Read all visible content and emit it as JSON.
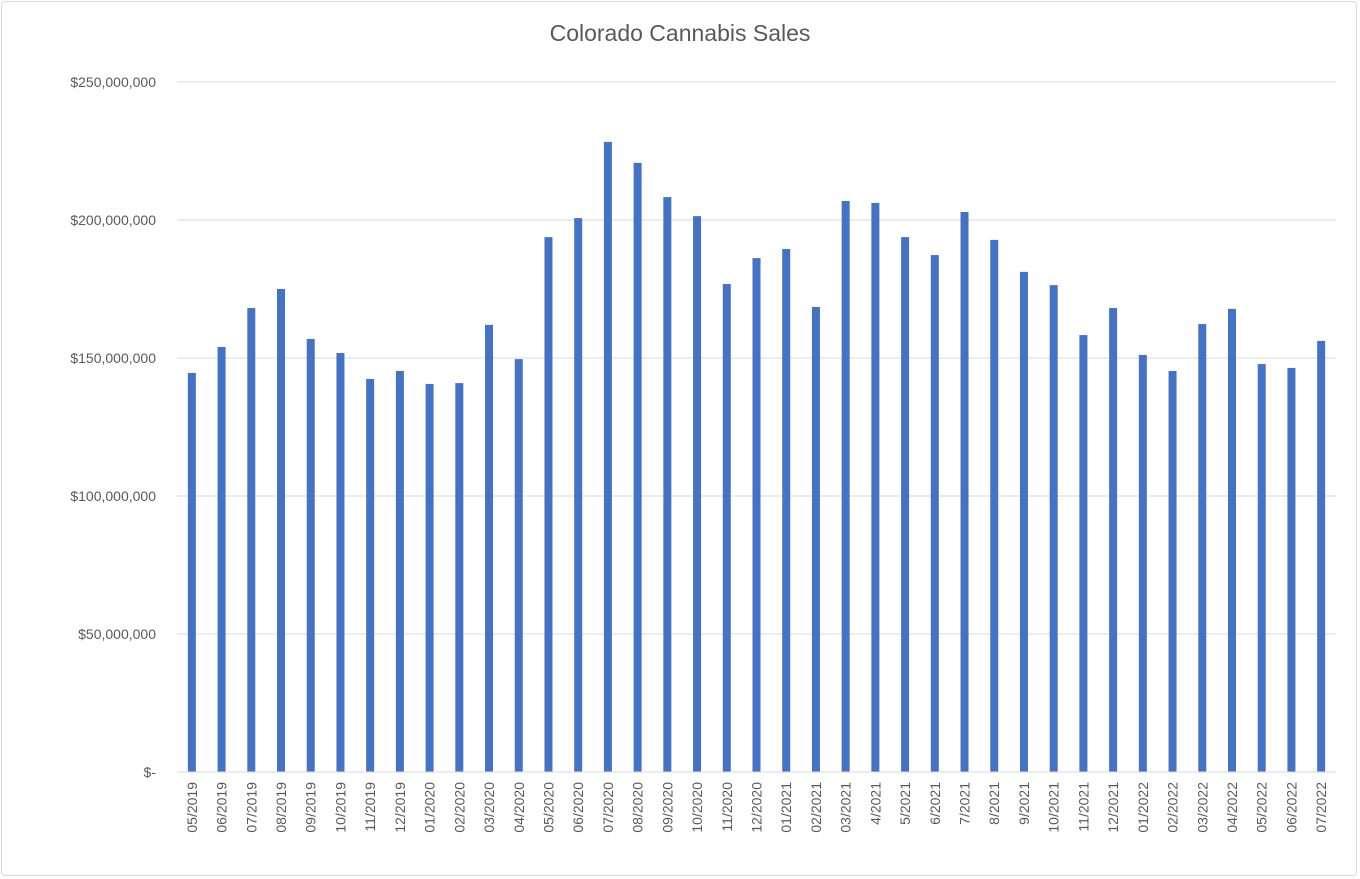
{
  "chart_data": {
    "type": "bar",
    "title": "Colorado Cannabis Sales",
    "xlabel": "",
    "ylabel": "",
    "ylim": [
      0,
      250000000
    ],
    "grid": true,
    "legend": "none",
    "bar_color": "#4472C4",
    "yticks": [
      0,
      50000000,
      100000000,
      150000000,
      200000000,
      250000000
    ],
    "ytick_labels": [
      "$-",
      "$50,000,000",
      "$100,000,000",
      "$150,000,000",
      "$200,000,000",
      "$250,000,000"
    ],
    "categories": [
      "05/2019",
      "06/2019",
      "07/2019",
      "08/2019",
      "09/2019",
      "10/2019",
      "11/2019",
      "12/2019",
      "01/2020",
      "02/2020",
      "03/2020",
      "04/2020",
      "05/2020",
      "06/2020",
      "07/2020",
      "08/2020",
      "09/2020",
      "10/2020",
      "11/2020",
      "12/2020",
      "01/2021",
      "02/2021",
      "03/2021",
      "4/2021",
      "5/2021",
      "6/2021",
      "7/2021",
      "8/2021",
      "9/2021",
      "10/2021",
      "11/2021",
      "12/2021",
      "01/2022",
      "02/2022",
      "03/2022",
      "04/2022",
      "05/2022",
      "06/2022",
      "07/2022"
    ],
    "values": [
      144600000,
      154000000,
      168100000,
      175000000,
      156900000,
      151800000,
      142400000,
      145300000,
      140600000,
      140900000,
      162000000,
      149600000,
      193800000,
      200700000,
      228300000,
      220700000,
      208300000,
      201400000,
      176800000,
      186200000,
      189500000,
      168500000,
      206900000,
      206200000,
      193800000,
      187300000,
      202900000,
      192800000,
      181200000,
      176400000,
      158300000,
      168100000,
      151100000,
      145300000,
      162300000,
      167800000,
      147800000,
      146400000,
      156200000
    ]
  }
}
